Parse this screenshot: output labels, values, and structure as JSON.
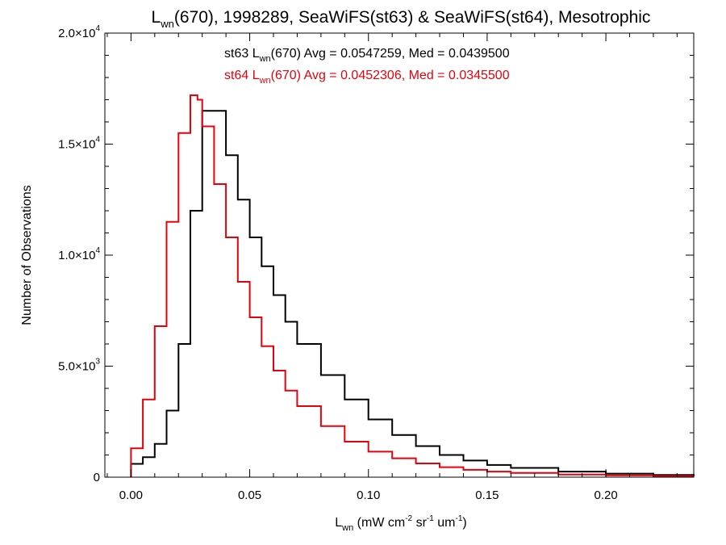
{
  "chart_data": {
    "type": "line",
    "title": {
      "l_base": "L",
      "l_sub": "wn",
      "rest": "(670), 1998289, SeaWiFS(st63) & SeaWiFS(st64), Mesotrophic"
    },
    "xlabel": {
      "l_base": "L",
      "l_sub": "wn",
      "p1": " (mW cm",
      "e1": "-2",
      "p2": " sr",
      "e2": "-1",
      "p3": " um",
      "e3": "-1",
      "p4": ")"
    },
    "ylabel": "Number of Observations",
    "xlim": [
      -0.011,
      0.237
    ],
    "ylim": [
      0,
      20000
    ],
    "xticks": [
      {
        "value": 0.0,
        "label": "0.00"
      },
      {
        "value": 0.05,
        "label": "0.05"
      },
      {
        "value": 0.1,
        "label": "0.10"
      },
      {
        "value": 0.15,
        "label": "0.15"
      },
      {
        "value": 0.2,
        "label": "0.20"
      }
    ],
    "yticks": [
      {
        "value": 0,
        "mantissa": "0",
        "exponent": ""
      },
      {
        "value": 5000,
        "mantissa": "5.0×10",
        "exponent": "3"
      },
      {
        "value": 10000,
        "mantissa": "1.0×10",
        "exponent": "4"
      },
      {
        "value": 15000,
        "mantissa": "1.5×10",
        "exponent": "4"
      },
      {
        "value": 20000,
        "mantissa": "2.0×10",
        "exponent": "4"
      }
    ],
    "legend_placement": "top-center",
    "series": [
      {
        "color": "#000000",
        "legend": {
          "prefix": "st63 L",
          "sub": "wn",
          "rest": "(670) Avg = 0.0547259, Med = 0.0439500"
        },
        "x": [
          0.0,
          0.005,
          0.01,
          0.015,
          0.02,
          0.025,
          0.03,
          0.035,
          0.04,
          0.045,
          0.05,
          0.055,
          0.06,
          0.065,
          0.07,
          0.08,
          0.09,
          0.1,
          0.11,
          0.12,
          0.13,
          0.14,
          0.15,
          0.16,
          0.18,
          0.2,
          0.22,
          0.237
        ],
        "y": [
          600,
          900,
          1500,
          3000,
          6000,
          12000,
          16500,
          16500,
          14500,
          12500,
          10800,
          9500,
          8200,
          7000,
          6000,
          4600,
          3500,
          2600,
          1900,
          1400,
          1000,
          750,
          550,
          420,
          250,
          160,
          100,
          60
        ]
      },
      {
        "color": "#e8000b",
        "legend": {
          "prefix": "st64 L",
          "sub": "wn",
          "rest": "(670) Avg = 0.0452306, Med = 0.0345500"
        },
        "x": [
          0.0,
          0.005,
          0.01,
          0.015,
          0.02,
          0.025,
          0.028,
          0.03,
          0.035,
          0.04,
          0.045,
          0.05,
          0.055,
          0.06,
          0.065,
          0.07,
          0.08,
          0.09,
          0.1,
          0.11,
          0.12,
          0.13,
          0.14,
          0.15,
          0.16,
          0.18,
          0.2,
          0.22,
          0.237
        ],
        "y": [
          1300,
          3500,
          6800,
          11500,
          15500,
          17200,
          17000,
          15800,
          13200,
          10800,
          8800,
          7200,
          5900,
          4800,
          3900,
          3200,
          2300,
          1600,
          1150,
          850,
          620,
          450,
          330,
          250,
          190,
          120,
          80,
          50,
          40
        ]
      }
    ]
  }
}
